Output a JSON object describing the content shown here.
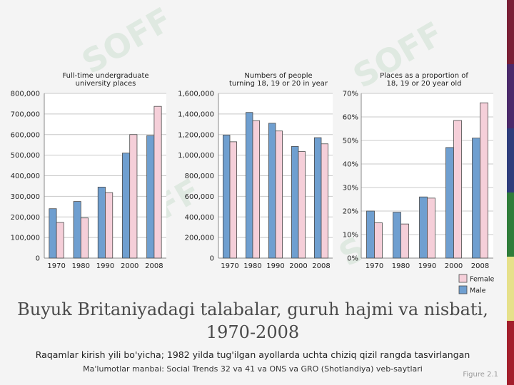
{
  "slide": {
    "title": "Buyuk Britaniyadagi talabalar, guruh hajmi va nisbati, 1970-2008",
    "subtitle": "Raqamlar kirish yili bo'yicha; 1982 yilda tug'ilgan ayollarda uchta chiziq qizil rangda tasvirlangan",
    "source": "Ma'lumotlar manbai: Social Trends 32 va 41 va ONS va GRO (Shotlandiya) veb-saytlari",
    "figure_label": "Figure 2.1",
    "watermark": "SOFF"
  },
  "legend": {
    "female": "Female",
    "male": "Male"
  },
  "colors": {
    "male": "#6f9fd0",
    "female": "#f5cfd9",
    "bar_stroke": "#4a4a4a",
    "grid": "#c8c8c8",
    "plot_bg": "#ffffff",
    "strip": [
      "#7a1f36",
      "#4b2a6b",
      "#2e3d7c",
      "#2f7d3a",
      "#e6e08a",
      "#a31f2c"
    ]
  },
  "chart_data": [
    {
      "type": "bar",
      "title": "Full-time undergraduate university places",
      "title_lines": [
        "Full-time undergraduate",
        "university places"
      ],
      "categories": [
        "1970",
        "1980",
        "1990",
        "2000",
        "2008"
      ],
      "series": [
        {
          "name": "Male",
          "values": [
            240000,
            275000,
            345000,
            510000,
            595000
          ]
        },
        {
          "name": "Female",
          "values": [
            173000,
            195000,
            318000,
            600000,
            737000
          ]
        }
      ],
      "ylim": [
        0,
        800000
      ],
      "yticks": [
        0,
        100000,
        200000,
        300000,
        400000,
        500000,
        600000,
        700000,
        800000
      ],
      "ytick_labels": [
        "0",
        "100,000",
        "200,000",
        "300,000",
        "400,000",
        "500,000",
        "600,000",
        "700,000",
        "800,000"
      ],
      "grid": true
    },
    {
      "type": "bar",
      "title": "Numbers of people turning 18, 19 or 20 in year",
      "title_lines": [
        "Numbers of people",
        "turning 18, 19 or 20 in year"
      ],
      "categories": [
        "1970",
        "1980",
        "1990",
        "2000",
        "2008"
      ],
      "series": [
        {
          "name": "Male",
          "values": [
            1195000,
            1415000,
            1310000,
            1085000,
            1170000
          ]
        },
        {
          "name": "Female",
          "values": [
            1130000,
            1335000,
            1235000,
            1035000,
            1110000
          ]
        }
      ],
      "ylim": [
        0,
        1600000
      ],
      "yticks": [
        0,
        200000,
        400000,
        600000,
        800000,
        1000000,
        1200000,
        1400000,
        1600000
      ],
      "ytick_labels": [
        "0",
        "200,000",
        "400,000",
        "600,000",
        "800,000",
        "1,000,000",
        "1,200,000",
        "1,400,000",
        "1,600,000"
      ],
      "grid": true
    },
    {
      "type": "bar",
      "title": "Places as a proportion of 18, 19 or 20 year old",
      "title_lines": [
        "Places as a proportion of",
        "18, 19 or 20 year old"
      ],
      "categories": [
        "1970",
        "1980",
        "1990",
        "2000",
        "2008"
      ],
      "series": [
        {
          "name": "Male",
          "values": [
            20,
            19.5,
            26,
            47,
            51
          ]
        },
        {
          "name": "Female",
          "values": [
            15,
            14.5,
            25.5,
            58.5,
            66
          ]
        }
      ],
      "ylim": [
        0,
        70
      ],
      "yticks": [
        0,
        10,
        20,
        30,
        40,
        50,
        60,
        70
      ],
      "ytick_labels": [
        "0%",
        "10%",
        "20%",
        "30%",
        "40%",
        "50%",
        "60%",
        "70%"
      ],
      "grid": true,
      "legend_position": "bottom-right"
    }
  ]
}
